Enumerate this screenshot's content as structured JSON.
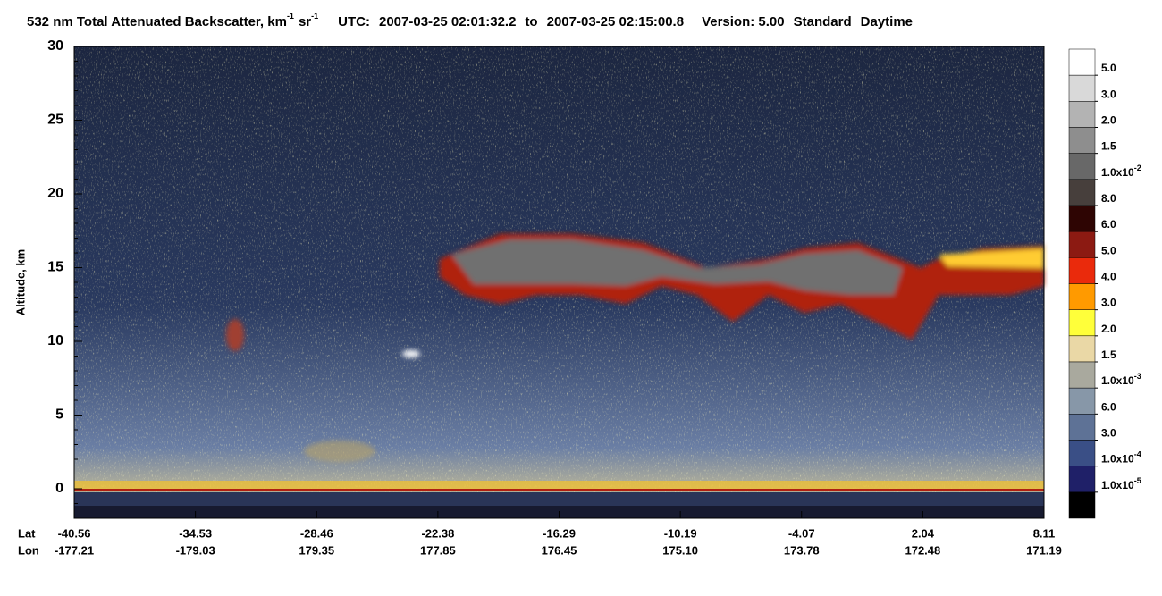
{
  "chart_data": {
    "type": "heatmap",
    "title_segments": [
      {
        "text": "532 nm Total Attenuated Backscatter, km",
        "sup": "-1"
      },
      {
        "text": "sr",
        "sup": "-1"
      }
    ],
    "utc_label": "UTC:",
    "time_start": "2007-03-25 02:01:32.2",
    "to_label": "to",
    "time_end": "2007-03-25 02:15:00.8",
    "version": "Version: 5.00",
    "product": "Standard",
    "mode": "Daytime",
    "ylabel": "Altitude, km",
    "ylim": [
      -2,
      30
    ],
    "yticks": [
      0,
      5,
      10,
      15,
      20,
      25,
      30
    ],
    "x_rows": [
      {
        "name": "Lat",
        "labels": [
          "-40.56",
          "-34.53",
          "-28.46",
          "-22.38",
          "-16.29",
          "-10.19",
          "-4.07",
          "2.04",
          "8.11"
        ]
      },
      {
        "name": "Lon",
        "labels": [
          "-177.21",
          "-179.03",
          "179.35",
          "177.85",
          "176.45",
          "175.10",
          "173.78",
          "172.48",
          "171.19"
        ]
      }
    ],
    "colorbar": {
      "colors": [
        "#ffffff",
        "#d9d9d9",
        "#b3b3b3",
        "#8e8e8e",
        "#686868",
        "#473f3c",
        "#2e0503",
        "#8c1a12",
        "#ea2a0c",
        "#ff9a00",
        "#ffff3a",
        "#ead8a6",
        "#a9a99e",
        "#8797a8",
        "#5e7296",
        "#3a4f86",
        "#1f2068",
        "#000000"
      ],
      "boundaries": [
        {
          "value": 0.05,
          "label": "5.0"
        },
        {
          "value": 0.03,
          "label": "3.0"
        },
        {
          "value": 0.02,
          "label": "2.0"
        },
        {
          "value": 0.015,
          "label": "1.5"
        },
        {
          "value": 0.01,
          "label": "1.0x10",
          "exp": "-2"
        },
        {
          "value": 0.008,
          "label": "8.0"
        },
        {
          "value": 0.006,
          "label": "6.0"
        },
        {
          "value": 0.005,
          "label": "5.0"
        },
        {
          "value": 0.004,
          "label": "4.0"
        },
        {
          "value": 0.003,
          "label": "3.0"
        },
        {
          "value": 0.002,
          "label": "2.0"
        },
        {
          "value": 0.0015,
          "label": "1.5"
        },
        {
          "value": 0.001,
          "label": "1.0x10",
          "exp": "-3"
        },
        {
          "value": 0.0006,
          "label": "6.0"
        },
        {
          "value": 0.0003,
          "label": "3.0"
        },
        {
          "value": 0.0001,
          "label": "1.0x10",
          "exp": "-4"
        },
        {
          "value": 1e-05,
          "label": "1.0x10",
          "exp": "-5"
        }
      ]
    }
  }
}
